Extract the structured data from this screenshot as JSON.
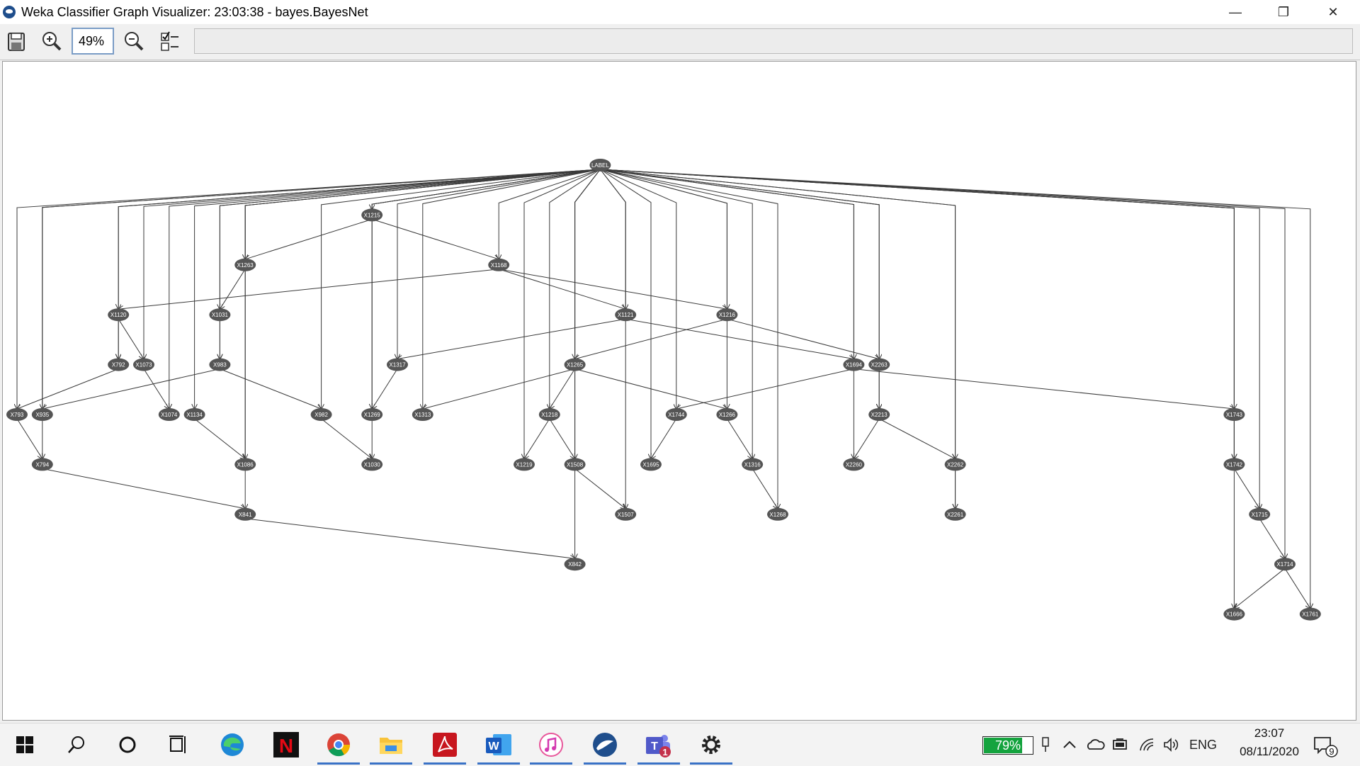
{
  "window": {
    "title": "Weka Classifier Graph Visualizer: 23:03:38 - bayes.BayesNet",
    "controls": {
      "minimize": "—",
      "maximize": "❐",
      "close": "✕"
    }
  },
  "toolbar": {
    "zoom_value": "49%",
    "buttons": [
      "save-icon",
      "zoom-in-icon",
      "zoom-out-icon",
      "layout-options-icon"
    ]
  },
  "graph": {
    "nodes": {
      "LABEL": {
        "label": "LABEL",
        "col": 23.0,
        "lvl": 0
      },
      "X1215": {
        "label": "X1215",
        "col": 14.0,
        "lvl": 1
      },
      "X1263": {
        "label": "X1263",
        "col": 9.0,
        "lvl": 2
      },
      "X1168": {
        "label": "X1168",
        "col": 19.0,
        "lvl": 2
      },
      "X1120": {
        "label": "X1120",
        "col": 4.0,
        "lvl": 3
      },
      "X1031": {
        "label": "X1031",
        "col": 8.0,
        "lvl": 3
      },
      "X1121": {
        "label": "X1121",
        "col": 24.0,
        "lvl": 3
      },
      "X1216": {
        "label": "X1216",
        "col": 28.0,
        "lvl": 3
      },
      "X792": {
        "label": "X792",
        "col": 4.0,
        "lvl": 4
      },
      "X1073": {
        "label": "X1073",
        "col": 5.0,
        "lvl": 4
      },
      "X983": {
        "label": "X983",
        "col": 8.0,
        "lvl": 4
      },
      "X1317": {
        "label": "X1317",
        "col": 15.0,
        "lvl": 4
      },
      "X1265": {
        "label": "X1265",
        "col": 22.0,
        "lvl": 4
      },
      "X1694": {
        "label": "X1694",
        "col": 33.0,
        "lvl": 4
      },
      "X2263": {
        "label": "X2263",
        "col": 34.0,
        "lvl": 4
      },
      "X793": {
        "label": "X793",
        "col": 0.0,
        "lvl": 5
      },
      "X935": {
        "label": "X935",
        "col": 1.0,
        "lvl": 5
      },
      "X1074": {
        "label": "X1074",
        "col": 6.0,
        "lvl": 5
      },
      "X1134": {
        "label": "X1134",
        "col": 7.0,
        "lvl": 5
      },
      "X982": {
        "label": "X982",
        "col": 12.0,
        "lvl": 5
      },
      "X1269": {
        "label": "X1269",
        "col": 14.0,
        "lvl": 5
      },
      "X1313": {
        "label": "X1313",
        "col": 16.0,
        "lvl": 5
      },
      "X1218": {
        "label": "X1218",
        "col": 21.0,
        "lvl": 5
      },
      "X1744": {
        "label": "X1744",
        "col": 26.0,
        "lvl": 5
      },
      "X1266": {
        "label": "X1266",
        "col": 28.0,
        "lvl": 5
      },
      "X2213": {
        "label": "X2213",
        "col": 34.0,
        "lvl": 5
      },
      "X1743": {
        "label": "X1743",
        "col": 48.0,
        "lvl": 5
      },
      "X794": {
        "label": "X794",
        "col": 1.0,
        "lvl": 6
      },
      "X1086": {
        "label": "X1086",
        "col": 9.0,
        "lvl": 6
      },
      "X1030": {
        "label": "X1030",
        "col": 14.0,
        "lvl": 6
      },
      "X1219": {
        "label": "X1219",
        "col": 20.0,
        "lvl": 6
      },
      "X1508": {
        "label": "X1508",
        "col": 22.0,
        "lvl": 6
      },
      "X1695": {
        "label": "X1695",
        "col": 25.0,
        "lvl": 6
      },
      "X1316": {
        "label": "X1316",
        "col": 29.0,
        "lvl": 6
      },
      "X2260": {
        "label": "X2260",
        "col": 33.0,
        "lvl": 6
      },
      "X2262": {
        "label": "X2262",
        "col": 37.0,
        "lvl": 6
      },
      "X1742": {
        "label": "X1742",
        "col": 48.0,
        "lvl": 6
      },
      "X841": {
        "label": "X841",
        "col": 9.0,
        "lvl": 7
      },
      "X1507": {
        "label": "X1507",
        "col": 24.0,
        "lvl": 7
      },
      "X1268": {
        "label": "X1268",
        "col": 30.0,
        "lvl": 7
      },
      "X2261": {
        "label": "X2261",
        "col": 37.0,
        "lvl": 7
      },
      "X1715": {
        "label": "X1715",
        "col": 49.0,
        "lvl": 7
      },
      "X842": {
        "label": "X842",
        "col": 22.0,
        "lvl": 8
      },
      "X1714": {
        "label": "X1714",
        "col": 50.0,
        "lvl": 8
      },
      "X1666": {
        "label": "X1666",
        "col": 48.0,
        "lvl": 9
      },
      "X1761": {
        "label": "X1761",
        "col": 51.0,
        "lvl": 9
      }
    },
    "edges": [
      [
        "LABEL",
        "X1215"
      ],
      [
        "LABEL",
        "X1263"
      ],
      [
        "LABEL",
        "X1168"
      ],
      [
        "LABEL",
        "X1120"
      ],
      [
        "LABEL",
        "X1031"
      ],
      [
        "LABEL",
        "X1121"
      ],
      [
        "LABEL",
        "X1216"
      ],
      [
        "LABEL",
        "X792"
      ],
      [
        "LABEL",
        "X1073"
      ],
      [
        "LABEL",
        "X983"
      ],
      [
        "LABEL",
        "X1317"
      ],
      [
        "LABEL",
        "X1265"
      ],
      [
        "LABEL",
        "X1694"
      ],
      [
        "LABEL",
        "X2263"
      ],
      [
        "LABEL",
        "X793"
      ],
      [
        "LABEL",
        "X935"
      ],
      [
        "LABEL",
        "X1074"
      ],
      [
        "LABEL",
        "X1134"
      ],
      [
        "LABEL",
        "X982"
      ],
      [
        "LABEL",
        "X1269"
      ],
      [
        "LABEL",
        "X1313"
      ],
      [
        "LABEL",
        "X1218"
      ],
      [
        "LABEL",
        "X1744"
      ],
      [
        "LABEL",
        "X1266"
      ],
      [
        "LABEL",
        "X2213"
      ],
      [
        "LABEL",
        "X1743"
      ],
      [
        "LABEL",
        "X794"
      ],
      [
        "LABEL",
        "X1086"
      ],
      [
        "LABEL",
        "X1030"
      ],
      [
        "LABEL",
        "X1219"
      ],
      [
        "LABEL",
        "X1508"
      ],
      [
        "LABEL",
        "X1695"
      ],
      [
        "LABEL",
        "X1316"
      ],
      [
        "LABEL",
        "X2260"
      ],
      [
        "LABEL",
        "X2262"
      ],
      [
        "LABEL",
        "X1742"
      ],
      [
        "LABEL",
        "X841"
      ],
      [
        "LABEL",
        "X1507"
      ],
      [
        "LABEL",
        "X1268"
      ],
      [
        "LABEL",
        "X2261"
      ],
      [
        "LABEL",
        "X1715"
      ],
      [
        "LABEL",
        "X842"
      ],
      [
        "LABEL",
        "X1714"
      ],
      [
        "LABEL",
        "X1666"
      ],
      [
        "LABEL",
        "X1761"
      ],
      [
        "X1215",
        "X1263"
      ],
      [
        "X1215",
        "X1168"
      ],
      [
        "X1263",
        "X1031"
      ],
      [
        "X1168",
        "X1120"
      ],
      [
        "X1168",
        "X1121"
      ],
      [
        "X1168",
        "X1216"
      ],
      [
        "X1120",
        "X792"
      ],
      [
        "X1120",
        "X1073"
      ],
      [
        "X1031",
        "X983"
      ],
      [
        "X1121",
        "X1317"
      ],
      [
        "X1121",
        "X1694"
      ],
      [
        "X1216",
        "X1265"
      ],
      [
        "X1216",
        "X2263"
      ],
      [
        "X792",
        "X793"
      ],
      [
        "X1073",
        "X1074"
      ],
      [
        "X983",
        "X935"
      ],
      [
        "X983",
        "X982"
      ],
      [
        "X1317",
        "X1269"
      ],
      [
        "X1265",
        "X1313"
      ],
      [
        "X1265",
        "X1218"
      ],
      [
        "X1265",
        "X1266"
      ],
      [
        "X1694",
        "X1744"
      ],
      [
        "X1694",
        "X1743"
      ],
      [
        "X2263",
        "X2213"
      ],
      [
        "X793",
        "X794"
      ],
      [
        "X1134",
        "X1086"
      ],
      [
        "X982",
        "X1030"
      ],
      [
        "X1218",
        "X1219"
      ],
      [
        "X1218",
        "X1508"
      ],
      [
        "X1744",
        "X1695"
      ],
      [
        "X1266",
        "X1316"
      ],
      [
        "X2213",
        "X2260"
      ],
      [
        "X2213",
        "X2262"
      ],
      [
        "X1743",
        "X1742"
      ],
      [
        "X794",
        "X841"
      ],
      [
        "X1508",
        "X1507"
      ],
      [
        "X1316",
        "X1268"
      ],
      [
        "X2262",
        "X2261"
      ],
      [
        "X1742",
        "X1715"
      ],
      [
        "X841",
        "X842"
      ],
      [
        "X1715",
        "X1714"
      ],
      [
        "X1714",
        "X1666"
      ],
      [
        "X1714",
        "X1761"
      ]
    ]
  },
  "taskbar": {
    "apps": [
      "windows-start-icon",
      "search-icon",
      "cortana-icon",
      "task-view-icon",
      "edge-icon",
      "netflix-icon",
      "chrome-icon",
      "file-explorer-icon",
      "acrobat-icon",
      "word-icon",
      "itunes-icon",
      "weka-icon",
      "teams-icon",
      "settings-icon"
    ],
    "netflix_letter": "N",
    "word_letter": "W",
    "teams_letter": "T",
    "teams_badge": "1",
    "battery_percent": "79%",
    "battery_level": 0.79,
    "language": "ENG",
    "time": "23:07",
    "date": "08/11/2020",
    "notification_count": "9"
  }
}
